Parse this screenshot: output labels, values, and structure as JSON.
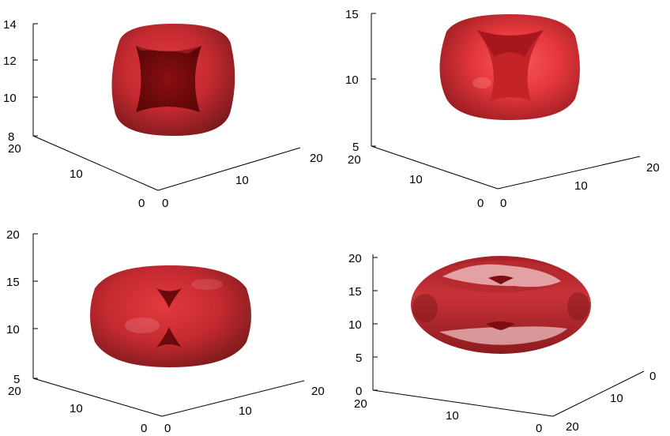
{
  "panels": [
    {
      "z_ticks": [
        "8",
        "10",
        "12",
        "14"
      ],
      "left_ticks": [
        "20",
        "10",
        "0"
      ],
      "right_ticks": [
        "0",
        "10",
        "20"
      ]
    },
    {
      "z_ticks": [
        "5",
        "10",
        "15"
      ],
      "left_ticks": [
        "20",
        "10",
        "0"
      ],
      "right_ticks": [
        "0",
        "10",
        "20"
      ]
    },
    {
      "z_ticks": [
        "5",
        "10",
        "15",
        "20"
      ],
      "left_ticks": [
        "20",
        "10",
        "0"
      ],
      "right_ticks": [
        "0",
        "10",
        "20"
      ]
    },
    {
      "z_ticks": [
        "0",
        "5",
        "10",
        "15",
        "20"
      ],
      "left_ticks": [
        "20",
        "10",
        "0"
      ],
      "right_ticks": [
        "20",
        "10",
        "0"
      ]
    }
  ],
  "colors": {
    "surface_dark": "#8e1b1f",
    "surface_mid": "#c42a30",
    "surface_light": "#f04848",
    "cavity": "#7d0d10",
    "highlight": "#f1c9c9"
  }
}
